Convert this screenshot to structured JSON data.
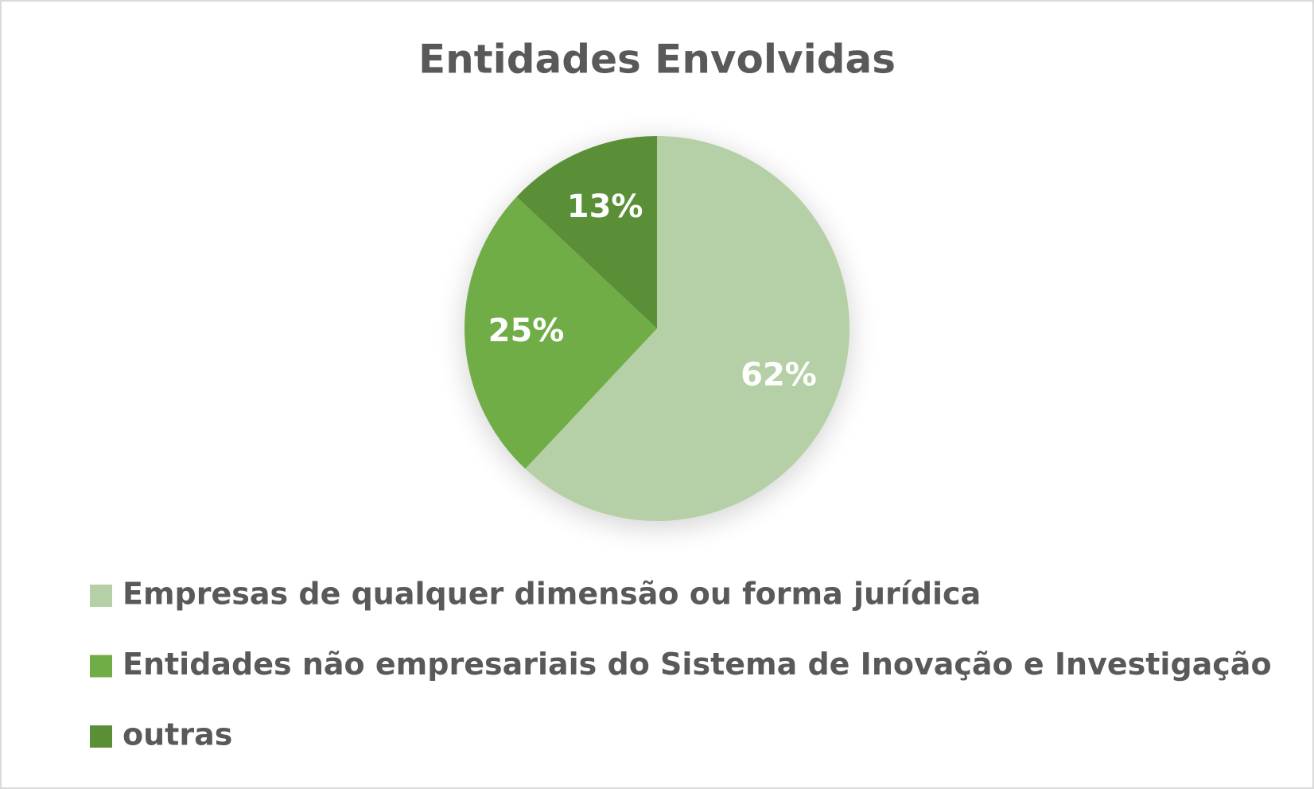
{
  "chart_data": {
    "type": "pie",
    "title": "Entidades Envolvidas",
    "categories": [
      "Empresas de qualquer dimensão ou forma jurídica",
      "Entidades não empresariais do Sistema de Inovação e Investigação",
      "outras"
    ],
    "values": [
      62,
      25,
      13
    ],
    "value_labels": [
      "62%",
      "25%",
      "13%"
    ],
    "colors": [
      "#b5d0a6",
      "#70ad47",
      "#5a8f38"
    ],
    "legend": "bottom"
  }
}
